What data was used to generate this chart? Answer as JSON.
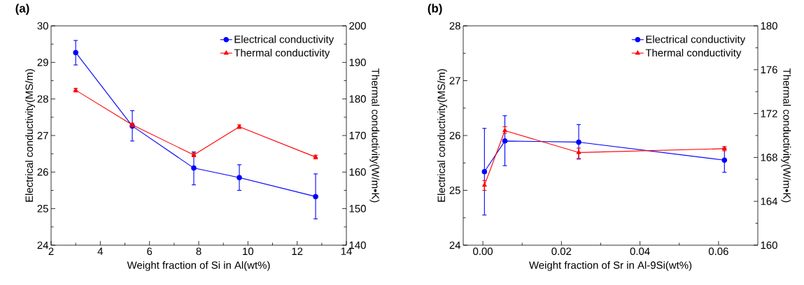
{
  "chart_data": [
    {
      "type": "line",
      "title": "(a)",
      "xlabel": "Weight fraction of Si in Al(wt%)",
      "ylabel": "Electrical conductivity(MS/m)",
      "y2label": "Thermal conductivity(W/m•K)",
      "x": [
        3.0,
        5.3,
        7.8,
        9.65,
        12.75
      ],
      "xlim": [
        2,
        14
      ],
      "xticks": [
        2,
        4,
        6,
        8,
        10,
        12,
        14
      ],
      "ylim": [
        24,
        30
      ],
      "yticks": [
        24,
        25,
        26,
        27,
        28,
        29,
        30
      ],
      "y2lim": [
        140,
        200
      ],
      "y2ticks": [
        140,
        150,
        160,
        170,
        180,
        190,
        200
      ],
      "legend": "top right",
      "line_style": "solid",
      "series": [
        {
          "name": "Electrical conductivity",
          "color": "#0000ff",
          "marker": "circle",
          "values": [
            29.27,
            27.26,
            26.11,
            25.85,
            25.33
          ],
          "errors": [
            [
              28.93,
              29.6
            ],
            [
              26.85,
              27.68
            ],
            [
              25.65,
              26.55
            ],
            [
              25.5,
              26.2
            ],
            [
              24.72,
              25.95
            ]
          ]
        },
        {
          "name": "Thermal conductivity",
          "color": "#ff0000",
          "marker": "triangle",
          "axis": "y2",
          "values": [
            182.4,
            172.9,
            164.7,
            172.4,
            164.1
          ],
          "errors": [
            0.5,
            0.5,
            0.5,
            0.5,
            0.5
          ]
        }
      ]
    },
    {
      "type": "line",
      "title": "(b)",
      "xlabel": "Weight fraction of Sr in Al-9Si(wt%)",
      "ylabel": "Electrical conductivity(MS/m)",
      "y2label": "Thermal conductivity(W/m•K)",
      "x": [
        0.0004,
        0.0056,
        0.0244,
        0.0615
      ],
      "xlim": [
        -0.005,
        0.07
      ],
      "xticks": [
        {
          "value": 0,
          "label": "0.00"
        },
        {
          "value": 0.02,
          "label": "0.02"
        },
        {
          "value": 0.04,
          "label": "0.04"
        },
        {
          "value": 0.06,
          "label": "0.06"
        }
      ],
      "ylim": [
        24,
        28
      ],
      "yticks": [
        24,
        25,
        26,
        27,
        28
      ],
      "y2lim": [
        160,
        180
      ],
      "y2ticks": [
        160,
        164,
        168,
        172,
        176,
        180
      ],
      "legend": "top right",
      "line_style": "solid",
      "series": [
        {
          "name": "Electrical conductivity",
          "color": "#0000ff",
          "marker": "circle",
          "values": [
            25.34,
            25.9,
            25.88,
            25.55
          ],
          "errors": [
            [
              24.55,
              26.13
            ],
            [
              25.45,
              26.36
            ],
            [
              25.57,
              26.2
            ],
            [
              25.33,
              25.77
            ]
          ]
        },
        {
          "name": "Thermal conductivity",
          "color": "#ff0000",
          "marker": "triangle",
          "axis": "y2",
          "values": [
            165.47,
            170.45,
            168.45,
            168.8
          ],
          "errors": [
            [
              165.0,
              165.9
            ],
            [
              170.2,
              170.8
            ],
            [
              167.9,
              168.85
            ],
            [
              168.6,
              169.0
            ]
          ]
        }
      ]
    }
  ]
}
